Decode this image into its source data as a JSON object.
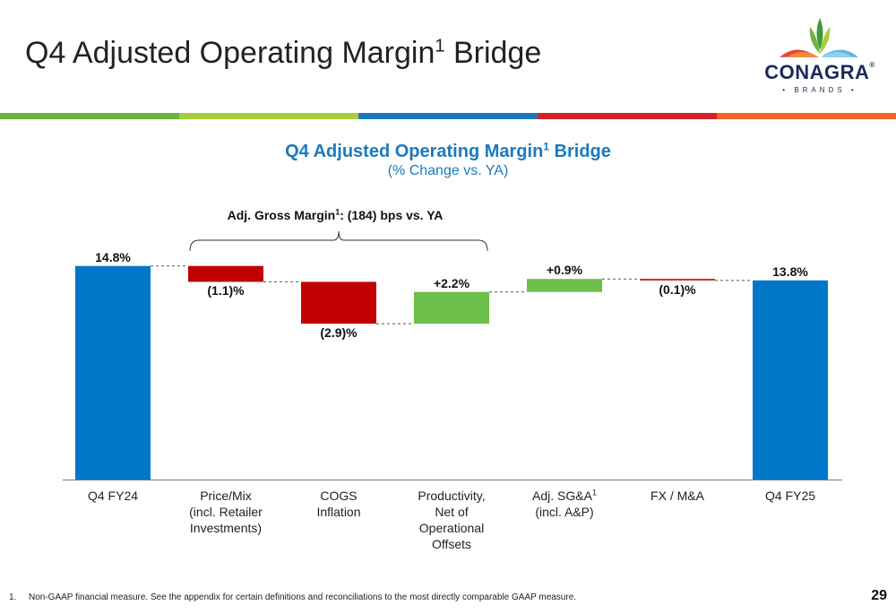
{
  "header": {
    "title": "Q4 Adjusted Operating Margin",
    "title_sup": "1",
    "title_suffix": " Bridge"
  },
  "logo": {
    "name": "CONAGRA",
    "tm": "®",
    "sub": "• BRANDS •"
  },
  "colors": {
    "blue": "#0077c8",
    "red": "#c00000",
    "green": "#6bbf4a",
    "title_blue": "#1a7ac0",
    "stripe": [
      "#6cb33f",
      "#a6ce39",
      "#1a7ac0",
      "#d2232a",
      "#f26522"
    ]
  },
  "chart_data": {
    "type": "bar",
    "subtype": "waterfall",
    "title": "Q4 Adjusted Operating Margin",
    "title_sup": "1",
    "title_suffix": " Bridge",
    "subtitle": "(% Change vs. YA)",
    "unit": "%",
    "grid": false,
    "legend": "none",
    "bracket_annotation": {
      "text_pre": "Adj. Gross Margin",
      "sup": "1",
      "text_post": ": (184) bps vs. YA",
      "spans": [
        "Price/Mix (incl. Retailer Investments)",
        "COGS Inflation",
        "Productivity, Net of Operational Offsets"
      ]
    },
    "bars": [
      {
        "category": "Q4 FY24",
        "sup": "",
        "kind": "total",
        "value": 14.8,
        "label": "14.8%"
      },
      {
        "category": "Price/Mix\n(incl. Retailer\nInvestments)",
        "sup": "",
        "kind": "delta",
        "value": -1.1,
        "label": "(1.1)%"
      },
      {
        "category": "COGS\nInflation",
        "sup": "",
        "kind": "delta",
        "value": -2.9,
        "label": "(2.9)%"
      },
      {
        "category": "Productivity,\nNet of\nOperational\nOffsets",
        "sup": "",
        "kind": "delta",
        "value": 2.2,
        "label": "+2.2%"
      },
      {
        "category": "Adj. SG&A",
        "sup": "1",
        "category_line2": "(incl. A&P)",
        "kind": "delta",
        "value": 0.9,
        "label": "+0.9%"
      },
      {
        "category": "FX / M&A",
        "sup": "",
        "kind": "delta",
        "value": -0.1,
        "label": "(0.1)%"
      },
      {
        "category": "Q4 FY25",
        "sup": "",
        "kind": "total",
        "value": 13.8,
        "label": "13.8%"
      }
    ]
  },
  "footnote": {
    "number": "1.",
    "text": "Non-GAAP financial measure. See the appendix for certain definitions and reconciliations to the most directly comparable GAAP measure."
  },
  "page_number": "29"
}
